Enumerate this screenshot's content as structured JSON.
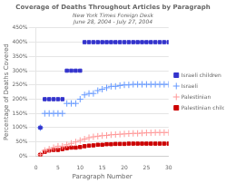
{
  "chart_data": {
    "type": "scatter",
    "title": "Coverage of Deaths Throughout Articles by Paragraph",
    "subtitle": [
      "New York Times Foreign Desk",
      "June 28, 2004 - July 27, 2004"
    ],
    "xlabel": "Paragraph Number",
    "ylabel": "Percentage of Deaths Covered",
    "xlim": [
      0,
      30
    ],
    "ylim": [
      0,
      450
    ],
    "xticks": [
      0,
      5,
      10,
      15,
      20,
      25,
      30
    ],
    "yticks": [
      {
        "value": 0,
        "label": "0%"
      },
      {
        "value": 50,
        "label": "50%"
      },
      {
        "value": 100,
        "label": "100%"
      },
      {
        "value": 150,
        "label": "150%"
      },
      {
        "value": 200,
        "label": "200%"
      },
      {
        "value": 250,
        "label": "250%"
      },
      {
        "value": 300,
        "label": "300%"
      },
      {
        "value": 350,
        "label": "350%"
      },
      {
        "value": 400,
        "label": "400%"
      },
      {
        "value": 450,
        "label": "450%"
      }
    ],
    "grid": "y",
    "legend": "right",
    "x": [
      1,
      2,
      3,
      4,
      5,
      6,
      7,
      8,
      9,
      10,
      11,
      12,
      13,
      14,
      15,
      16,
      17,
      18,
      19,
      20,
      21,
      22,
      23,
      24,
      25,
      26,
      27,
      28,
      29,
      30
    ],
    "series": [
      {
        "name": "Israeli children",
        "color": "#3333CC",
        "marker": "square",
        "values": [
          100,
          200,
          200,
          200,
          200,
          200,
          300,
          300,
          300,
          300,
          400,
          400,
          400,
          400,
          400,
          400,
          400,
          400,
          400,
          400,
          400,
          400,
          400,
          400,
          400,
          400,
          400,
          400,
          400,
          400
        ]
      },
      {
        "name": "Israeli",
        "color": "#6699FF",
        "marker": "plus",
        "values": [
          100,
          150,
          150,
          150,
          150,
          150,
          185,
          185,
          185,
          200,
          215,
          220,
          220,
          230,
          235,
          240,
          245,
          245,
          248,
          250,
          250,
          252,
          252,
          252,
          252,
          252,
          252,
          252,
          252,
          252
        ]
      },
      {
        "name": "Palestinian",
        "color": "#FF9999",
        "marker": "plus",
        "values": [
          5,
          20,
          25,
          30,
          35,
          35,
          40,
          45,
          50,
          55,
          60,
          65,
          68,
          70,
          72,
          73,
          75,
          76,
          77,
          78,
          79,
          80,
          80,
          81,
          82,
          82,
          83,
          83,
          83,
          83
        ]
      },
      {
        "name": "Palestinian children",
        "color": "#CC0000",
        "marker": "square",
        "values": [
          5,
          15,
          20,
          22,
          22,
          25,
          28,
          30,
          30,
          32,
          35,
          37,
          38,
          40,
          40,
          42,
          42,
          43,
          43,
          43,
          44,
          44,
          44,
          44,
          44,
          44,
          44,
          44,
          44,
          44
        ]
      }
    ]
  }
}
